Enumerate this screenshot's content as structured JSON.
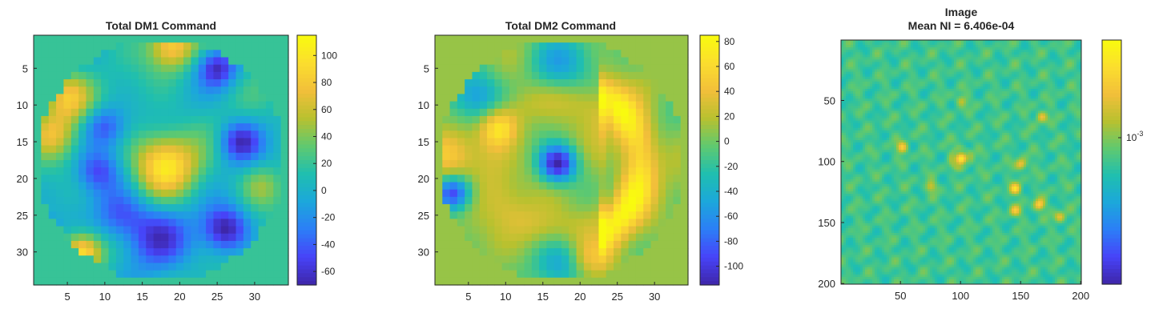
{
  "colors": {
    "parula": [
      "#3e26a8",
      "#4743f8",
      "#2c7ef7",
      "#1ca7db",
      "#1fbfaf",
      "#5fc96f",
      "#b8c12f",
      "#f2bf3a",
      "#fbde2e",
      "#f9fb0e"
    ],
    "axis": "#262626",
    "background": "#ffffff"
  },
  "chart_data": [
    {
      "type": "heatmap",
      "title": "Total DM1 Command",
      "x_ticks": [
        5,
        10,
        15,
        20,
        25,
        30
      ],
      "y_ticks": [
        5,
        10,
        15,
        20,
        25,
        30
      ],
      "xlim": [
        0.5,
        34.5
      ],
      "ylim": [
        0.5,
        34.5
      ],
      "y_reversed": true,
      "clim": [
        -70,
        115
      ],
      "colorbar_ticks": [
        100,
        80,
        60,
        40,
        20,
        0,
        -20,
        -40,
        -60
      ],
      "background_value": 20,
      "grid_size": 34,
      "aperture_radius": 16.5,
      "features": [
        {
          "x": 18,
          "y": 18,
          "value": 110,
          "width": 3
        },
        {
          "x": 5,
          "y": 9,
          "value": 90,
          "width": 2.3
        },
        {
          "x": 3,
          "y": 14,
          "value": 75,
          "width": 2.2
        },
        {
          "x": 7,
          "y": 30,
          "value": 105,
          "width": 1.8
        },
        {
          "x": 19,
          "y": 2,
          "value": 95,
          "width": 2.2
        },
        {
          "x": 26,
          "y": 27,
          "value": -60,
          "width": 2.2
        },
        {
          "x": 25,
          "y": 5,
          "value": -45,
          "width": 1.8
        },
        {
          "x": 28,
          "y": 15,
          "value": -50,
          "width": 2
        },
        {
          "x": 10,
          "y": 13,
          "value": -35,
          "width": 2
        },
        {
          "x": 9,
          "y": 19,
          "value": -30,
          "width": 2
        },
        {
          "x": 12,
          "y": 25,
          "value": -30,
          "width": 2.5
        },
        {
          "x": 2,
          "y": 27,
          "value": -65,
          "width": 1
        },
        {
          "x": 17,
          "y": 28,
          "value": -40,
          "width": 3
        },
        {
          "x": 31,
          "y": 21,
          "value": 55,
          "width": 2
        }
      ]
    },
    {
      "type": "heatmap",
      "title": "Total DM2 Command",
      "x_ticks": [
        5,
        10,
        15,
        20,
        25,
        30
      ],
      "y_ticks": [
        5,
        10,
        15,
        20,
        25,
        30
      ],
      "xlim": [
        0.5,
        34.5
      ],
      "ylim": [
        0.5,
        34.5
      ],
      "y_reversed": true,
      "clim": [
        -115,
        85
      ],
      "colorbar_ticks": [
        80,
        60,
        40,
        20,
        0,
        -20,
        -40,
        -60,
        -80,
        -100
      ],
      "background_value": 10,
      "grid_size": 34,
      "aperture_radius": 16.5,
      "features": [
        {
          "x": 17,
          "y": 18,
          "value": -110,
          "width": 1.8
        },
        {
          "x": 3,
          "y": 22,
          "value": -85,
          "width": 1.6
        },
        {
          "x": 6,
          "y": 9,
          "value": -60,
          "width": 2.5
        },
        {
          "x": 17,
          "y": 4,
          "value": -40,
          "width": 3
        },
        {
          "x": 18,
          "y": 32,
          "value": -40,
          "width": 2.5
        },
        {
          "x": 3,
          "y": 17,
          "value": 55,
          "width": 2.3
        },
        {
          "x": 9,
          "y": 13,
          "value": 60,
          "width": 1.8
        },
        {
          "x": 21,
          "y": 31,
          "value": 50,
          "width": 2
        }
      ],
      "arcs": [
        {
          "cx": 17,
          "cy": 18,
          "r": 11,
          "value": 75,
          "width": 1.8,
          "min_x": 23
        },
        {
          "cx": 17,
          "cy": 18,
          "r": 9,
          "value": 30,
          "width": 2,
          "max_x": 23
        }
      ]
    },
    {
      "type": "heatmap",
      "title": "Image",
      "subtitle": "Mean NI = 6.406e-04",
      "x_ticks": [
        50,
        100,
        150,
        200
      ],
      "y_ticks": [
        50,
        100,
        150,
        200
      ],
      "xlim": [
        0.5,
        200.5
      ],
      "ylim": [
        0.5,
        200.5
      ],
      "y_reversed": true,
      "color_scale": "log",
      "colorbar_ticks": [
        {
          "base": "10",
          "exponent": "-3"
        }
      ],
      "grid_size": 100,
      "bright_spots": [
        {
          "x": 100,
          "y": 97,
          "value": 1
        },
        {
          "x": 51,
          "y": 88,
          "value": 0.72
        },
        {
          "x": 145,
          "y": 122,
          "value": 0.78
        },
        {
          "x": 165,
          "y": 135,
          "value": 0.78
        },
        {
          "x": 150,
          "y": 102,
          "value": 0.7
        },
        {
          "x": 167,
          "y": 63,
          "value": 0.62
        },
        {
          "x": 145,
          "y": 140,
          "value": 0.6
        },
        {
          "x": 182,
          "y": 145,
          "value": 0.55
        },
        {
          "x": 100,
          "y": 50,
          "value": 0.45
        },
        {
          "x": 75,
          "y": 120,
          "value": 0.5
        }
      ]
    }
  ]
}
